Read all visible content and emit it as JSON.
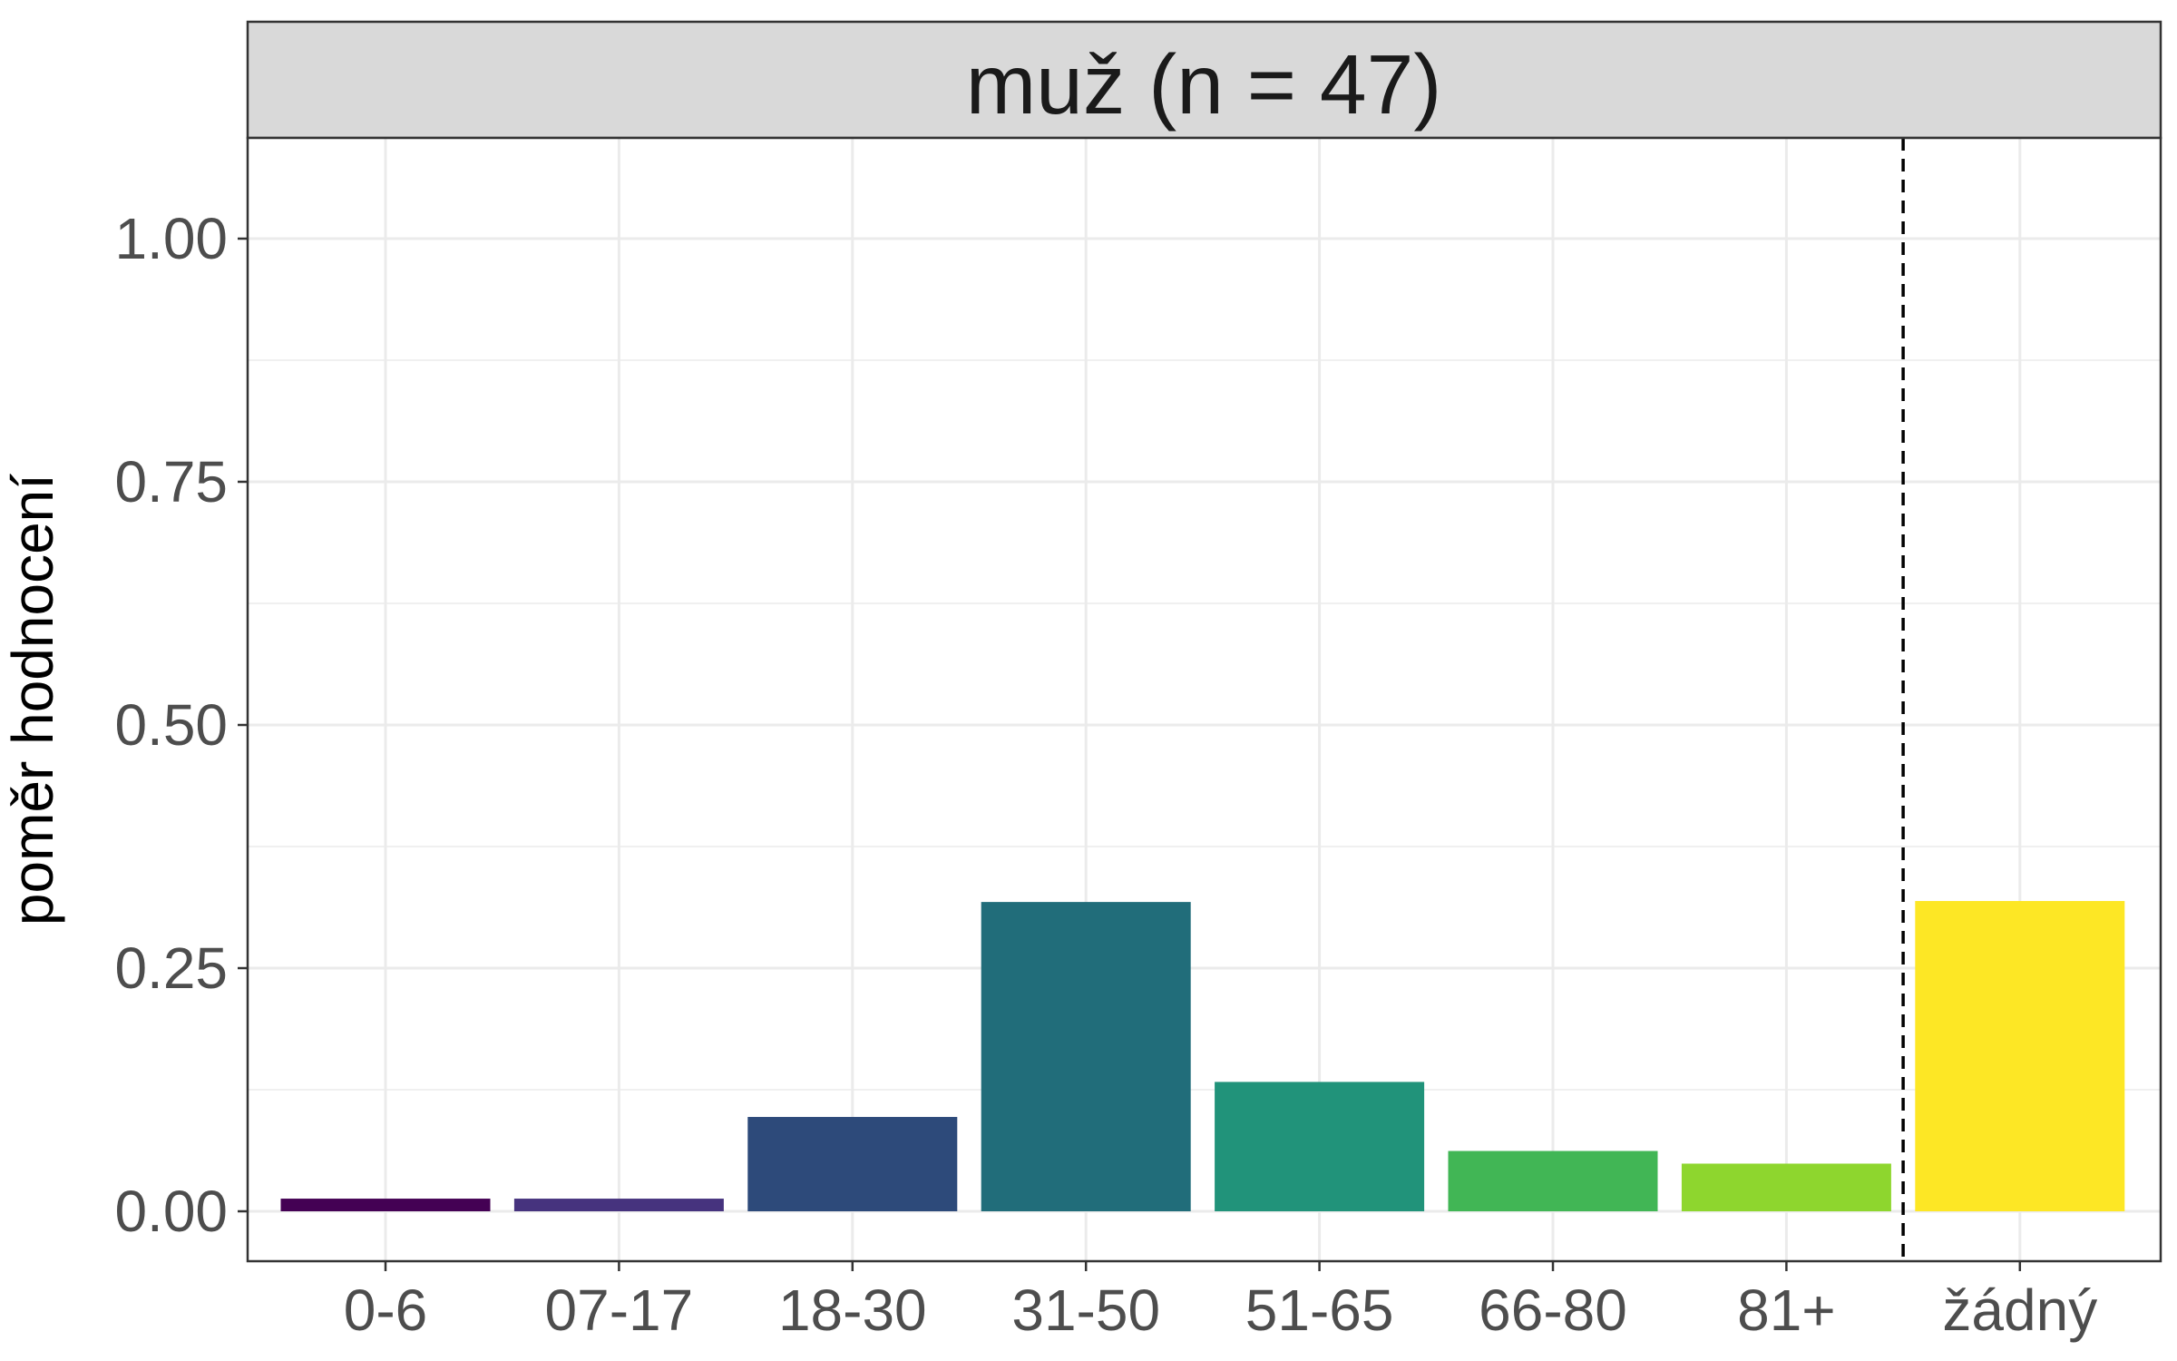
{
  "chart_data": {
    "type": "bar",
    "facet_title": "muž (n = 47)",
    "ylabel": "poměr hodnocení",
    "xlabel": "",
    "categories": [
      "0-6",
      "07-17",
      "18-30",
      "31-50",
      "51-65",
      "66-80",
      "81+",
      "žádný"
    ],
    "values": [
      0.013,
      0.013,
      0.097,
      0.318,
      0.133,
      0.062,
      0.049,
      0.319
    ],
    "colors": [
      "#440154",
      "#46337E",
      "#2D4A7A",
      "#216D7A",
      "#21937A",
      "#41B655",
      "#8ED62E",
      "#FDE725"
    ],
    "ylim": [
      0,
      1.1
    ],
    "yticks": [
      {
        "value": 0,
        "label": "0.00"
      },
      {
        "value": 0.25,
        "label": "0.25"
      },
      {
        "value": 0.5,
        "label": "0.50"
      },
      {
        "value": 0.75,
        "label": "0.75"
      },
      {
        "value": 1.0,
        "label": "1.00"
      }
    ],
    "reference_line": {
      "style": "dashed",
      "between_categories": [
        "81+",
        "žádný"
      ]
    },
    "grid": true,
    "legend": "none"
  }
}
